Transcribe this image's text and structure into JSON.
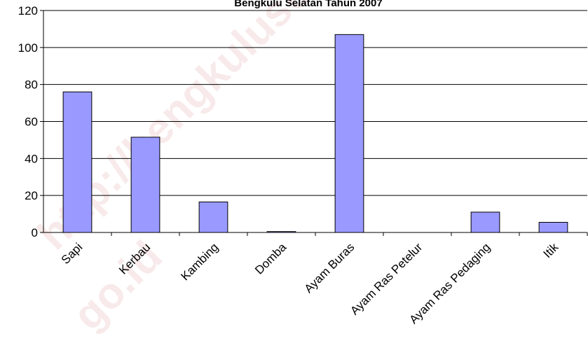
{
  "watermark": {
    "line1": "http://bengkuluse",
    "line2": "go.id"
  },
  "chart_data": {
    "type": "bar",
    "title": "Bengkulu Selatan Tahun 2007",
    "xlabel": "",
    "ylabel": "",
    "categories": [
      "Sapi",
      "Kerbau",
      "Kambing",
      "Domba",
      "Ayam Buras",
      "Ayam Ras Petelur",
      "Ayam Ras Pedaging",
      "Itik"
    ],
    "values": [
      76,
      51.5,
      16.5,
      0.5,
      107,
      0,
      11,
      5.5
    ],
    "ylim": [
      0,
      120
    ],
    "yticks": [
      "0",
      "20",
      "40",
      "60",
      "80",
      "100",
      "120"
    ],
    "grid": true,
    "legend": "none",
    "colors": {
      "bar_fill": "#9999ff",
      "bar_stroke": "#000000",
      "grid": "#000000",
      "axis": "#000000"
    }
  }
}
